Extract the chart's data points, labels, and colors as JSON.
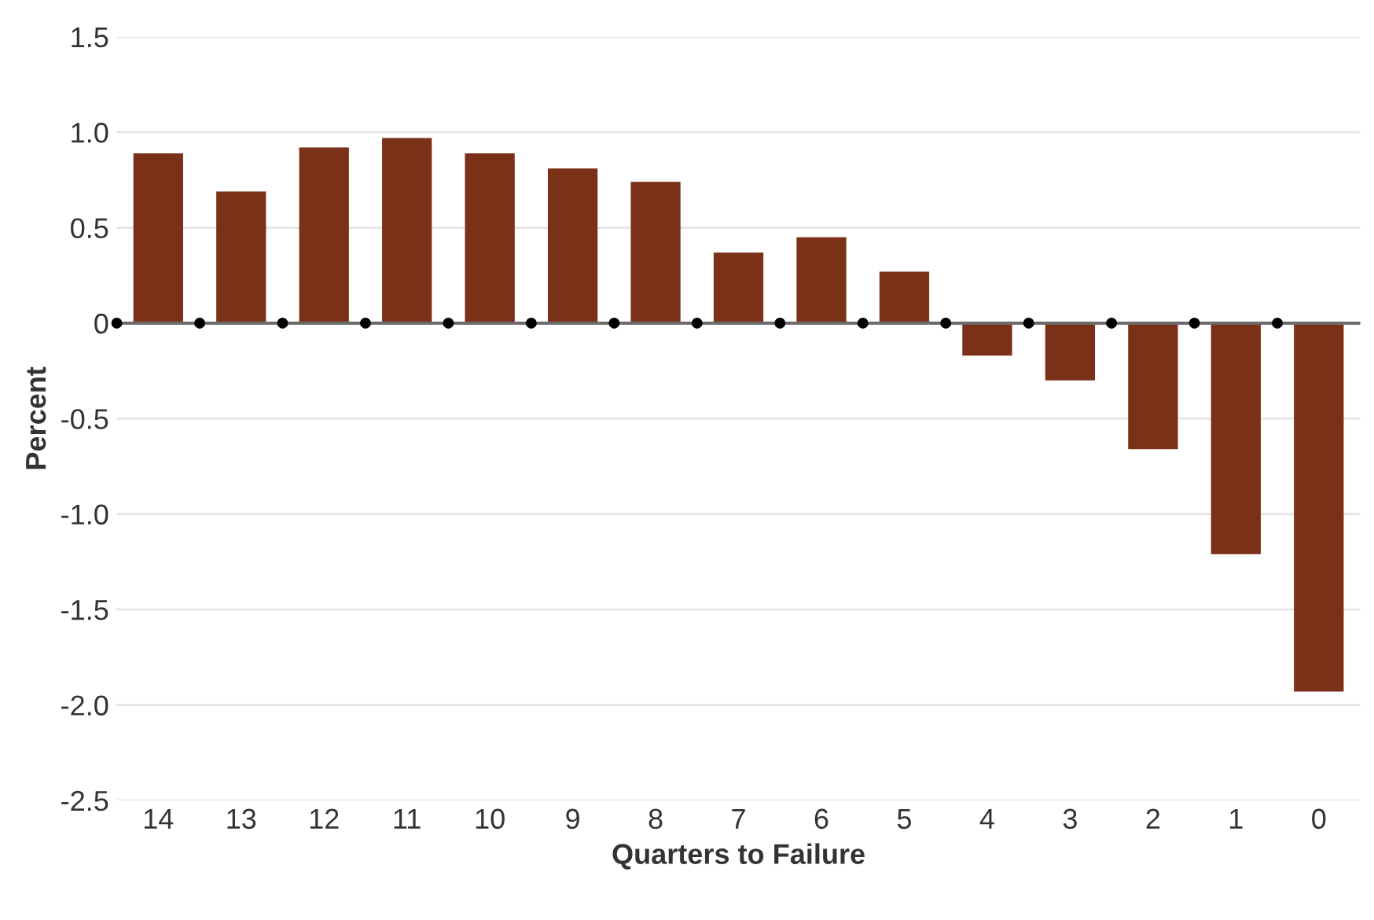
{
  "chart_data": {
    "type": "bar",
    "xlabel": "Quarters to Failure",
    "ylabel": "Percent",
    "categories": [
      "14",
      "13",
      "12",
      "11",
      "10",
      "9",
      "8",
      "7",
      "6",
      "5",
      "4",
      "3",
      "2",
      "1",
      "0"
    ],
    "values": [
      0.89,
      0.69,
      0.92,
      0.97,
      0.89,
      0.81,
      0.74,
      0.37,
      0.45,
      0.27,
      -0.17,
      -0.3,
      -0.66,
      -1.21,
      -1.93
    ],
    "color": "#7b3018",
    "ylim": [
      -2.5,
      1.5
    ],
    "yticks": [
      {
        "value": -2.5,
        "label": "-2.5"
      },
      {
        "value": -2.0,
        "label": "-2.0"
      },
      {
        "value": -1.5,
        "label": "-1.5"
      },
      {
        "value": -1.0,
        "label": "-1.0"
      },
      {
        "value": -0.5,
        "label": "-0.5"
      },
      0,
      {
        "value": 0.5,
        "label": "0.5"
      },
      {
        "value": 1.0,
        "label": "1.0"
      },
      {
        "value": 1.5,
        "label": "1.5"
      }
    ],
    "grid": "y",
    "ref_lines": [
      {
        "axis": "y",
        "value": 0,
        "color": "#6b6b6b"
      }
    ]
  }
}
